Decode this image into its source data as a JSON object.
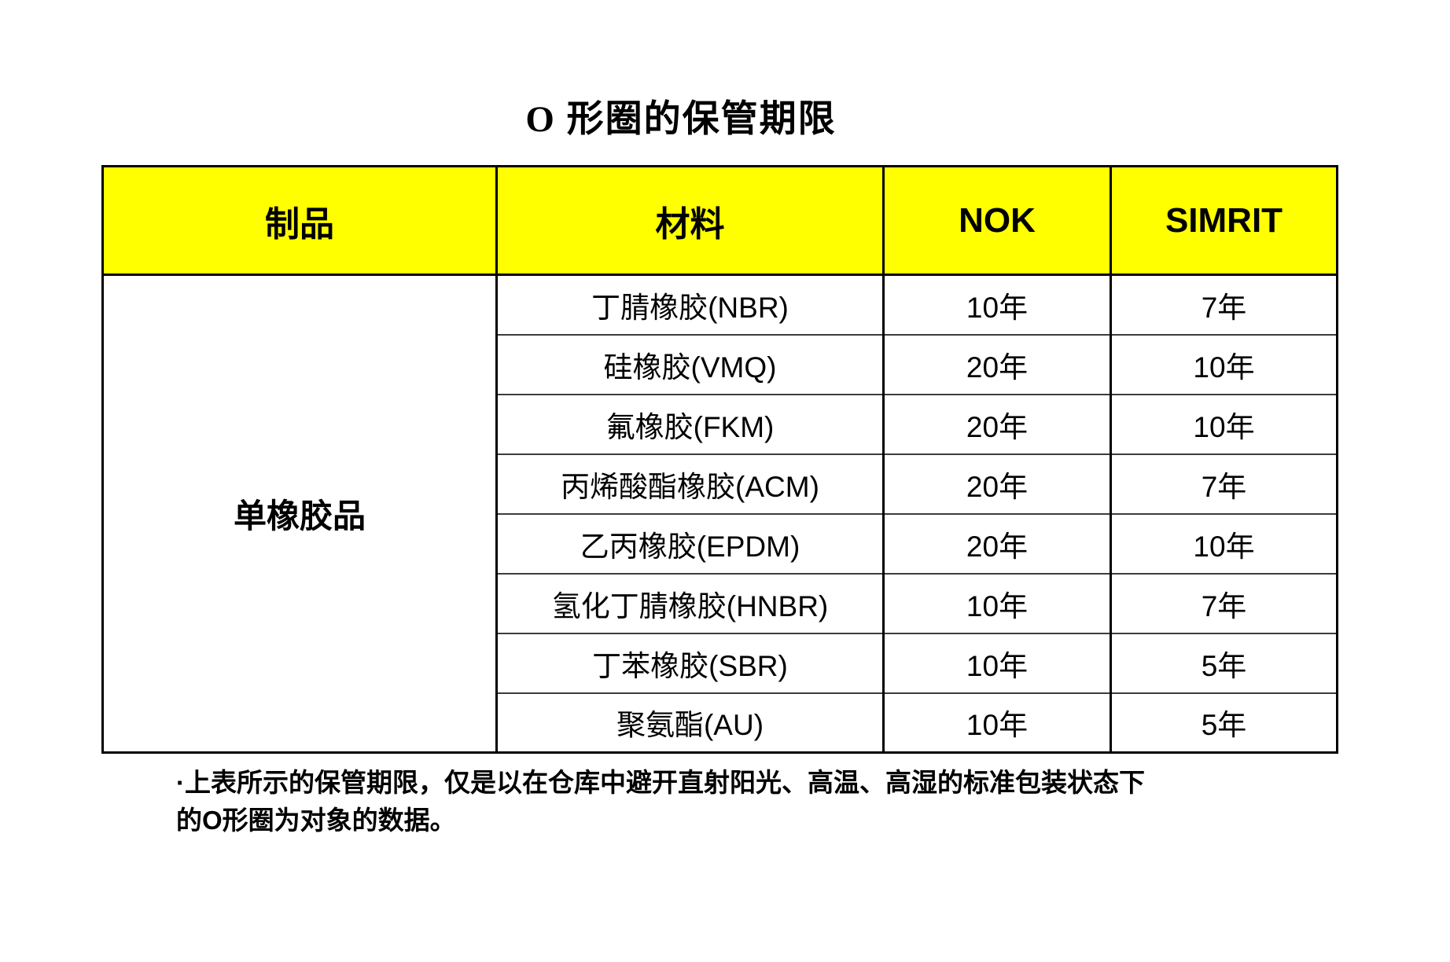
{
  "title": "O 形圈的保管期限",
  "table": {
    "headers": [
      "制品",
      "材料",
      "NOK",
      "SIMRIT"
    ],
    "product": "单橡胶品",
    "rows": [
      {
        "material": "丁腈橡胶(NBR)",
        "nok": "10年",
        "simrit": "7年"
      },
      {
        "material": "硅橡胶(VMQ)",
        "nok": "20年",
        "simrit": "10年"
      },
      {
        "material": "氟橡胶(FKM)",
        "nok": "20年",
        "simrit": "10年"
      },
      {
        "material": "丙烯酸酯橡胶(ACM)",
        "nok": "20年",
        "simrit": "7年"
      },
      {
        "material": "乙丙橡胶(EPDM)",
        "nok": "20年",
        "simrit": "10年"
      },
      {
        "material": "氢化丁腈橡胶(HNBR)",
        "nok": "10年",
        "simrit": "7年"
      },
      {
        "material": "丁苯橡胶(SBR)",
        "nok": "10年",
        "simrit": "5年"
      },
      {
        "material": "聚氨酯(AU)",
        "nok": "10年",
        "simrit": "5年"
      }
    ]
  },
  "note": {
    "line1": "·上表所示的保管期限，仅是以在仓库中避开直射阳光、高温、高湿的标准包装状态下",
    "line2": "的O形圈为对象的数据。"
  },
  "colors": {
    "header_bg": "#FFFF00",
    "border": "#000000",
    "text": "#000000"
  }
}
